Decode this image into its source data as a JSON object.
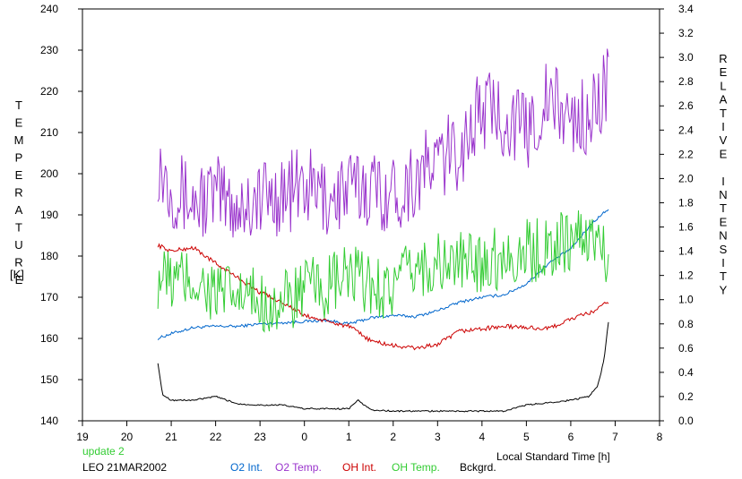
{
  "chart_data": {
    "type": "line",
    "xlabel": "Local Standard Time [h]",
    "ylabel_left": "TEMPERATURE",
    "ylabel_left_unit": "[K]",
    "ylabel_right": "RELATIVE INTENSITY",
    "x_ticks": [
      "19",
      "20",
      "21",
      "22",
      "23",
      "0",
      "1",
      "2",
      "3",
      "4",
      "5",
      "6",
      "7",
      "8"
    ],
    "x_range_hours": [
      19,
      32
    ],
    "y_left_range": [
      140,
      240
    ],
    "y_left_ticks": [
      "140",
      "150",
      "160",
      "170",
      "180",
      "190",
      "200",
      "210",
      "220",
      "230",
      "240"
    ],
    "y_right_range": [
      0.0,
      3.4
    ],
    "y_right_ticks": [
      "0.0",
      "0.2",
      "0.4",
      "0.6",
      "0.8",
      "1.0",
      "1.2",
      "1.4",
      "1.6",
      "1.8",
      "2.0",
      "2.2",
      "2.4",
      "2.6",
      "2.8",
      "3.0",
      "3.2",
      "3.4"
    ],
    "grid": false,
    "annotations": {
      "update": "update 2",
      "station": "LEO 21MAR2002"
    },
    "series": [
      {
        "name": "O2 Int.",
        "color": "#0066cc",
        "axis": "right",
        "x": [
          20.7,
          21.0,
          21.5,
          22.0,
          22.5,
          23.0,
          23.5,
          24.0,
          24.5,
          25.0,
          25.5,
          26.0,
          26.5,
          27.0,
          27.5,
          28.0,
          28.5,
          29.0,
          29.5,
          30.0,
          30.5,
          30.85
        ],
        "y": [
          0.68,
          0.72,
          0.77,
          0.78,
          0.78,
          0.8,
          0.81,
          0.82,
          0.83,
          0.8,
          0.85,
          0.87,
          0.86,
          0.91,
          0.98,
          1.02,
          1.04,
          1.13,
          1.3,
          1.42,
          1.64,
          1.75
        ]
      },
      {
        "name": "O2 Temp.",
        "color": "#9933cc",
        "axis": "left",
        "x": [
          20.7,
          21.0,
          21.5,
          22.0,
          22.5,
          23.0,
          23.5,
          24.0,
          24.5,
          25.0,
          25.5,
          26.0,
          26.5,
          27.0,
          27.5,
          28.0,
          28.5,
          29.0,
          29.5,
          30.0,
          30.5,
          30.85
        ],
        "y": [
          203,
          197,
          193,
          195,
          192,
          194,
          195,
          197,
          194,
          196,
          197,
          195,
          199,
          203,
          206,
          216,
          214,
          210,
          218,
          213,
          214,
          224
        ]
      },
      {
        "name": "OH Int.",
        "color": "#cc0000",
        "axis": "right",
        "x": [
          20.7,
          21.0,
          21.5,
          22.0,
          22.5,
          23.0,
          23.5,
          24.0,
          24.5,
          25.0,
          25.5,
          26.0,
          26.5,
          27.0,
          27.5,
          28.0,
          28.5,
          29.0,
          29.5,
          30.0,
          30.5,
          30.85
        ],
        "y": [
          1.45,
          1.4,
          1.43,
          1.3,
          1.18,
          1.06,
          0.98,
          0.87,
          0.82,
          0.78,
          0.66,
          0.62,
          0.6,
          0.63,
          0.74,
          0.76,
          0.78,
          0.77,
          0.76,
          0.84,
          0.9,
          0.98
        ]
      },
      {
        "name": "OH Temp.",
        "color": "#33cc33",
        "axis": "left",
        "x": [
          20.7,
          21.0,
          21.5,
          22.0,
          22.5,
          23.0,
          23.5,
          24.0,
          24.5,
          25.0,
          25.5,
          26.0,
          26.5,
          27.0,
          27.5,
          28.0,
          28.5,
          29.0,
          29.5,
          30.0,
          30.5,
          30.85
        ],
        "y": [
          175,
          174,
          174,
          171,
          170,
          169,
          168,
          172,
          172,
          175,
          173,
          172,
          177,
          178,
          178,
          179,
          180,
          181,
          182,
          184,
          185,
          179
        ]
      },
      {
        "name": "Bckgrd.",
        "color": "#000000",
        "axis": "right",
        "x": [
          20.7,
          20.8,
          21.0,
          21.5,
          22.0,
          22.5,
          23.0,
          23.5,
          24.0,
          24.5,
          25.0,
          25.2,
          25.5,
          26.0,
          26.5,
          27.0,
          27.5,
          28.0,
          28.5,
          29.0,
          29.5,
          30.0,
          30.4,
          30.6,
          30.75,
          30.85
        ],
        "y": [
          0.48,
          0.22,
          0.17,
          0.17,
          0.2,
          0.14,
          0.13,
          0.13,
          0.1,
          0.1,
          0.1,
          0.17,
          0.09,
          0.08,
          0.08,
          0.08,
          0.08,
          0.08,
          0.08,
          0.13,
          0.15,
          0.17,
          0.2,
          0.28,
          0.5,
          0.82
        ]
      }
    ]
  }
}
